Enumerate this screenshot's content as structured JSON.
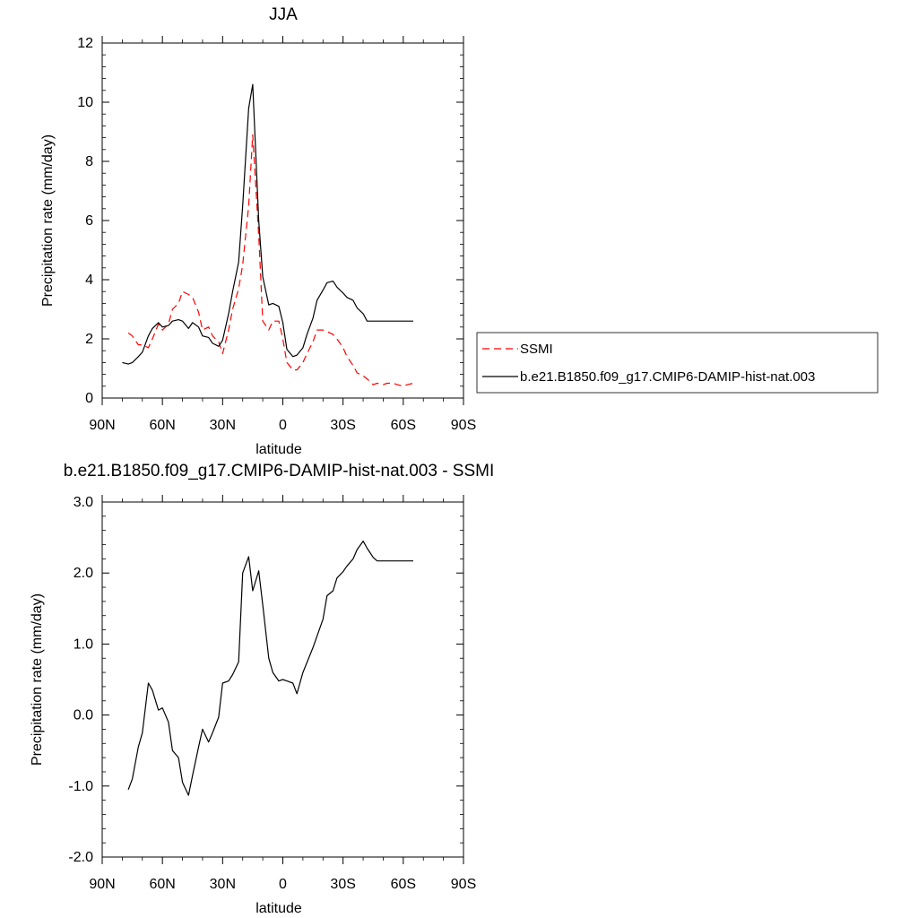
{
  "chart_data": [
    {
      "type": "line",
      "title": "JJA",
      "xlabel": "latitude",
      "ylabel": "Precipitation rate (mm/day)",
      "xlim": [
        90,
        -90
      ],
      "ylim": [
        0,
        12
      ],
      "x_ticks": [
        90,
        60,
        30,
        0,
        -30,
        -60,
        -90
      ],
      "x_tick_labels": [
        "90N",
        "60N",
        "30N",
        "0",
        "30S",
        "60S",
        "90S"
      ],
      "y_ticks": [
        0,
        2,
        4,
        6,
        8,
        10,
        12
      ],
      "y_tick_labels": [
        "0",
        "2",
        "4",
        "6",
        "8",
        "10",
        "12"
      ],
      "grid": false,
      "legend_position": "right",
      "series": [
        {
          "name": "SSMI",
          "color": "#ff0000",
          "dash": "dashed",
          "x": [
            77,
            75,
            72,
            70,
            67,
            65,
            62,
            60,
            57,
            55,
            52,
            50,
            47,
            45,
            42,
            40,
            37,
            35,
            32,
            30,
            27,
            25,
            22,
            20,
            17,
            15,
            12,
            10,
            7,
            5,
            2,
            0,
            -2,
            -5,
            -7,
            -10,
            -12,
            -15,
            -17,
            -20,
            -22,
            -25,
            -27,
            -30,
            -32,
            -35,
            -37,
            -40,
            -42,
            -45,
            -47,
            -50,
            -52,
            -55,
            -57,
            -60,
            -62,
            -65
          ],
          "values": [
            2.2,
            2.1,
            1.8,
            1.8,
            1.7,
            2.0,
            2.5,
            2.3,
            2.5,
            3.0,
            3.2,
            3.6,
            3.5,
            3.4,
            2.9,
            2.3,
            2.4,
            2.1,
            1.9,
            1.5,
            2.3,
            3.0,
            3.7,
            4.5,
            6.5,
            8.9,
            5.5,
            2.6,
            2.3,
            2.6,
            2.6,
            2.0,
            1.2,
            0.95,
            0.95,
            1.2,
            1.5,
            1.9,
            2.3,
            2.3,
            2.25,
            2.15,
            2.0,
            1.7,
            1.4,
            1.1,
            0.85,
            0.75,
            0.65,
            0.45,
            0.5,
            0.45,
            0.5,
            0.5,
            0.45,
            0.4,
            0.45,
            0.5
          ]
        },
        {
          "name": "b.e21.B1850.f09_g17.CMIP6-DAMIP-hist-nat.003",
          "color": "#000000",
          "dash": "solid",
          "x": [
            80,
            77,
            75,
            72,
            70,
            67,
            65,
            62,
            60,
            57,
            55,
            52,
            50,
            47,
            45,
            42,
            40,
            37,
            35,
            32,
            30,
            27,
            25,
            22,
            20,
            17,
            15,
            12,
            10,
            7,
            5,
            2,
            0,
            -2,
            -5,
            -7,
            -10,
            -12,
            -15,
            -17,
            -20,
            -22,
            -25,
            -27,
            -30,
            -32,
            -35,
            -37,
            -40,
            -42,
            -45,
            -47,
            -50,
            -52,
            -55,
            -57,
            -60,
            -62,
            -65
          ],
          "values": [
            1.2,
            1.15,
            1.2,
            1.4,
            1.55,
            2.1,
            2.35,
            2.55,
            2.4,
            2.45,
            2.6,
            2.65,
            2.6,
            2.35,
            2.55,
            2.4,
            2.1,
            2.05,
            1.85,
            1.75,
            1.95,
            2.85,
            3.6,
            4.6,
            6.5,
            9.8,
            10.6,
            6.0,
            4.1,
            3.15,
            3.2,
            3.1,
            2.55,
            1.65,
            1.4,
            1.45,
            1.7,
            2.15,
            2.7,
            3.3,
            3.65,
            3.9,
            3.95,
            3.75,
            3.55,
            3.4,
            3.3,
            3.05,
            2.85,
            2.6,
            2.6,
            2.6,
            2.6,
            2.6,
            2.6,
            2.6,
            2.6,
            2.6,
            2.6
          ]
        }
      ]
    },
    {
      "type": "line",
      "title": "b.e21.B1850.f09_g17.CMIP6-DAMIP-hist-nat.003 - SSMI",
      "xlabel": "latitude",
      "ylabel": "Precipitation rate (mm/day)",
      "xlim": [
        90,
        -90
      ],
      "ylim": [
        -2,
        3
      ],
      "x_ticks": [
        90,
        60,
        30,
        0,
        -30,
        -60,
        -90
      ],
      "x_tick_labels": [
        "90N",
        "60N",
        "30N",
        "0",
        "30S",
        "60S",
        "90S"
      ],
      "y_ticks": [
        -2,
        -1,
        0,
        1,
        2,
        3
      ],
      "y_tick_labels": [
        "-2.0",
        "-1.0",
        "0.0",
        "1.0",
        "2.0",
        "3.0"
      ],
      "grid": false,
      "series": [
        {
          "color": "#000000",
          "dash": "solid",
          "x": [
            77,
            75,
            72,
            70,
            67,
            65,
            62,
            60,
            57,
            55,
            52,
            50,
            47,
            45,
            42,
            40,
            37,
            35,
            32,
            30,
            27,
            25,
            22,
            20,
            17,
            15,
            12,
            10,
            7,
            5,
            2,
            0,
            -2,
            -5,
            -7,
            -10,
            -15,
            -20,
            -22,
            -25,
            -27,
            -30,
            -32,
            -35,
            -37,
            -40,
            -42,
            -45,
            -47,
            -50,
            -52,
            -55,
            -57,
            -60,
            -62,
            -65
          ],
          "values": [
            -1.05,
            -0.9,
            -0.45,
            -0.25,
            0.45,
            0.35,
            0.07,
            0.1,
            -0.1,
            -0.5,
            -0.6,
            -0.95,
            -1.13,
            -0.85,
            -0.45,
            -0.2,
            -0.38,
            -0.25,
            -0.03,
            0.45,
            0.48,
            0.57,
            0.75,
            2.0,
            2.23,
            1.75,
            2.03,
            1.55,
            0.8,
            0.6,
            0.48,
            0.5,
            0.48,
            0.45,
            0.3,
            0.6,
            0.95,
            1.35,
            1.68,
            1.75,
            1.93,
            2.02,
            2.1,
            2.2,
            2.33,
            2.45,
            2.35,
            2.22,
            2.17,
            2.17,
            2.17,
            2.17,
            2.17,
            2.17,
            2.17,
            2.17
          ]
        }
      ]
    }
  ]
}
